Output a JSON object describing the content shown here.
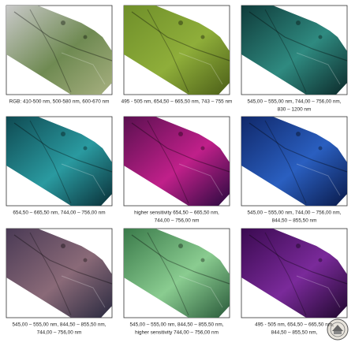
{
  "panels": [
    {
      "caption": [
        "RGB: 410-500 nm, 500-580 nm, 600-670 nm"
      ]
    },
    {
      "caption": [
        "495 - 505 nm, 654,50 – 665,50 nm, 743 – 755 nm"
      ]
    },
    {
      "caption": [
        "545,00 – 555,00 nm, 744,00 – 756,00 nm,",
        "830 – 1200 nm"
      ]
    },
    {
      "caption": [
        "654,50 – 665,50 nm,  744,00 – 756,00 nm"
      ]
    },
    {
      "caption": [
        "higher sensitivity  654,50 – 665,50 nm,",
        "744,00 – 756,00 nm"
      ]
    },
    {
      "caption": [
        "545,00 – 555,00 nm, 744,00 – 756,00 nm,",
        "844,50 – 855,50 nm"
      ]
    },
    {
      "caption": [
        "545,00 – 555,00 nm, 844,50 – 855,50 nm,",
        "744,00 – 756,00 nm"
      ]
    },
    {
      "caption": [
        "545,00 – 555,00 nm, 844,50 – 855,50 nm,",
        "higher sensitivity  744,00 – 756,00 nm"
      ]
    },
    {
      "caption": [
        "495 - 505 nm, 654,50 – 665,50 nm,",
        "844,50 – 855,50 nm,"
      ]
    }
  ]
}
